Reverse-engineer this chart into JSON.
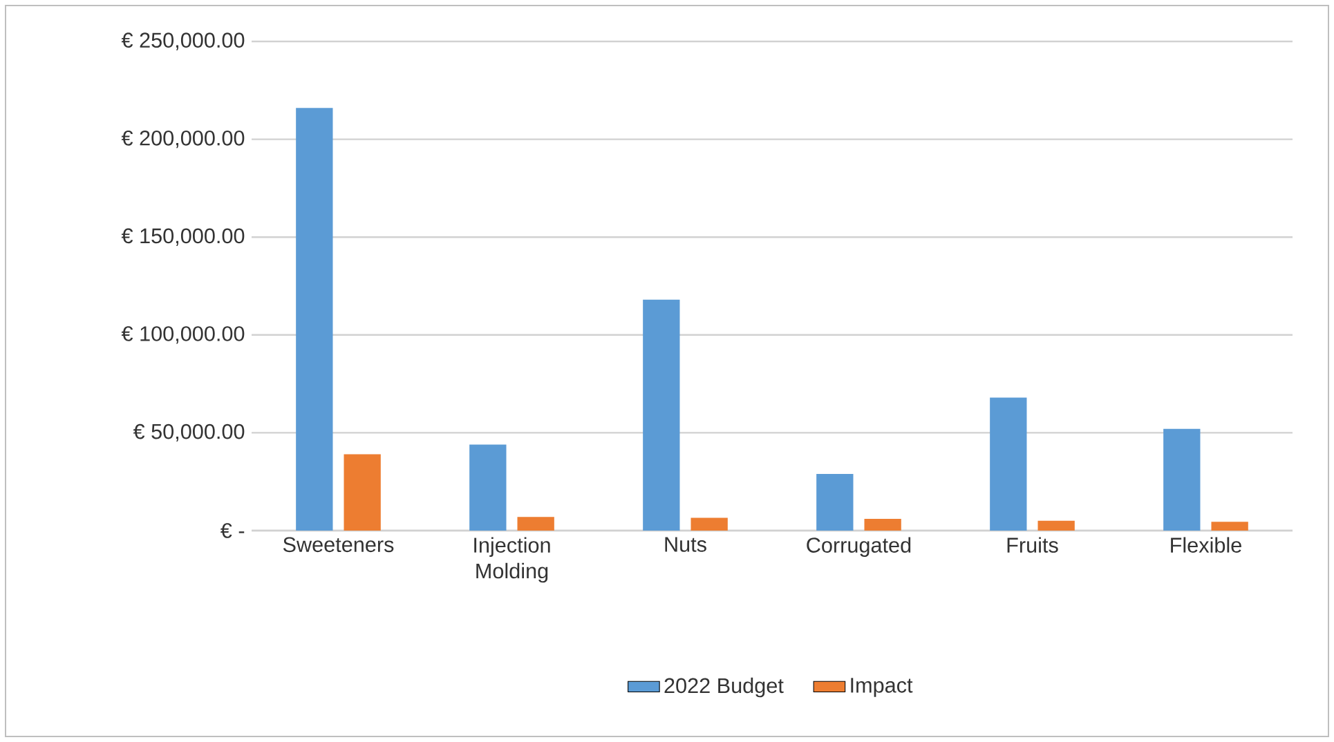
{
  "chart_data": {
    "type": "bar",
    "categories": [
      "Sweeteners",
      "Injection Molding",
      "Nuts",
      "Corrugated",
      "Fruits",
      "Flexible"
    ],
    "series": [
      {
        "name": "2022 Budget",
        "color": "#5b9bd5",
        "values": [
          216000,
          44000,
          118000,
          29000,
          68000,
          52000
        ]
      },
      {
        "name": "Impact",
        "color": "#ed7d31",
        "values": [
          39000,
          7000,
          6500,
          6000,
          5000,
          4500
        ]
      }
    ],
    "ylim": [
      0,
      250000
    ],
    "yticks": [
      {
        "value": 0,
        "label": "€ -"
      },
      {
        "value": 50000,
        "label": "€ 50,000.00"
      },
      {
        "value": 100000,
        "label": "€ 100,000.00"
      },
      {
        "value": 150000,
        "label": "€ 150,000.00"
      },
      {
        "value": 200000,
        "label": "€ 200,000.00"
      },
      {
        "value": 250000,
        "label": "€ 250,000.00"
      }
    ],
    "grid": "y",
    "legend": "bottom"
  }
}
